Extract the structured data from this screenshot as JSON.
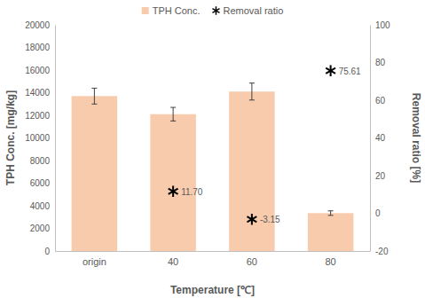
{
  "chart_data": {
    "type": "bar",
    "x_label": "Temperature [℃]",
    "y_label": "TPH Conc. [mg/kg]",
    "y2_label": "Removal ratio [%]",
    "categories": [
      "origin",
      "40",
      "60",
      "80"
    ],
    "ylim": [
      0,
      20000
    ],
    "yticks": [
      0,
      2000,
      4000,
      6000,
      8000,
      10000,
      12000,
      14000,
      16000,
      18000,
      20000
    ],
    "y2lim": [
      -20,
      100
    ],
    "y2ticks": [
      -20,
      0,
      20,
      40,
      60,
      80,
      100
    ],
    "grid": false,
    "legend": "top",
    "series": [
      {
        "name": "TPH Conc.",
        "type": "bar",
        "color": "#f8cbad",
        "values": [
          13700,
          12100,
          14100,
          3350
        ],
        "errors": [
          700,
          600,
          750,
          200
        ]
      },
      {
        "name": "Removal ratio",
        "type": "scatter",
        "axis": "y2",
        "marker": "asterisk",
        "color": "#000000",
        "data_labels": true,
        "values": [
          null,
          11.7,
          -3.15,
          75.61
        ],
        "value_labels": [
          null,
          "11.70",
          "-3.15",
          "75.61"
        ]
      }
    ]
  }
}
